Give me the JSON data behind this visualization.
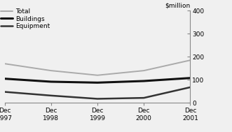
{
  "x": [
    1997,
    1998,
    1999,
    2000,
    2001
  ],
  "total": [
    170,
    140,
    120,
    140,
    185
  ],
  "buildings": [
    105,
    92,
    88,
    95,
    108
  ],
  "equipment": [
    48,
    32,
    18,
    22,
    68
  ],
  "total_color": "#aaaaaa",
  "buildings_color": "#111111",
  "equipment_color": "#333333",
  "total_lw": 1.4,
  "buildings_lw": 2.2,
  "equipment_lw": 1.8,
  "ylabel": "$million",
  "ylim": [
    0,
    400
  ],
  "yticks": [
    0,
    100,
    200,
    300,
    400
  ],
  "xtick_labels": [
    "Dec\n1997",
    "Dec\n1998",
    "Dec\n1999",
    "Dec\n2000",
    "Dec\n2001"
  ],
  "legend_labels": [
    "Total",
    "Buildings",
    "Equipment"
  ],
  "bg_color": "#f0f0f0"
}
